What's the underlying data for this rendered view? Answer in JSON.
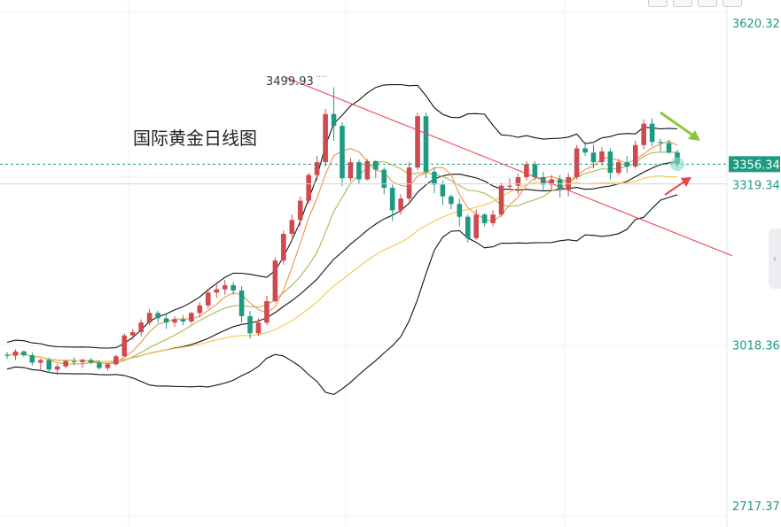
{
  "chart_data": {
    "type": "candlestick",
    "title": "国际黄金日线图",
    "price_axis": {
      "ticks": [
        3620.32,
        3018.36,
        2717.37
      ],
      "min": 2717.37,
      "max": 3620.32,
      "position": "right"
    },
    "labels": {
      "current_price": "3356.34",
      "support_price": "3319.34",
      "swing_high": "3499.93"
    },
    "last_price": 3356.34,
    "last_price_line": 3356.34,
    "support_line": 3319.34,
    "swing_high_value": 3499.93,
    "grid": true,
    "overlays": [
      "bollinger-bands",
      "moving-averages",
      "descending-trendline",
      "forecast-arrows"
    ],
    "colors": {
      "up": "#d0494f",
      "down": "#1e9a82",
      "bollinger": "#111111",
      "ma_fast": "#f0924a",
      "ma_mid": "#a9b654",
      "ma_slow": "#f2c84b",
      "trendline": "#e8454f",
      "arrow_down": "#8cc63f",
      "arrow_up": "#e8454f",
      "price_tag": "#1e9a82",
      "axis_text": "#1e9a82"
    },
    "candles": [
      [
        3000,
        3005,
        2992,
        2998
      ],
      [
        2998,
        3010,
        2990,
        3006
      ],
      [
        3006,
        3008,
        2996,
        2999
      ],
      [
        2999,
        3004,
        2980,
        2985
      ],
      [
        2985,
        2993,
        2970,
        2990
      ],
      [
        2990,
        2995,
        2965,
        2972
      ],
      [
        2972,
        2982,
        2962,
        2978
      ],
      [
        2978,
        2990,
        2975,
        2988
      ],
      [
        2988,
        2995,
        2980,
        2986
      ],
      [
        2986,
        2992,
        2975,
        2990
      ],
      [
        2990,
        2994,
        2982,
        2985
      ],
      [
        2985,
        2990,
        2972,
        2975
      ],
      [
        2975,
        2985,
        2970,
        2982
      ],
      [
        2982,
        3000,
        2980,
        2997
      ],
      [
        2997,
        3040,
        2996,
        3036
      ],
      [
        3036,
        3048,
        3028,
        3042
      ],
      [
        3042,
        3066,
        3034,
        3060
      ],
      [
        3060,
        3085,
        3055,
        3078
      ],
      [
        3078,
        3082,
        3060,
        3068
      ],
      [
        3068,
        3075,
        3048,
        3060
      ],
      [
        3060,
        3072,
        3052,
        3066
      ],
      [
        3066,
        3074,
        3055,
        3062
      ],
      [
        3062,
        3080,
        3058,
        3078
      ],
      [
        3078,
        3098,
        3070,
        3092
      ],
      [
        3092,
        3122,
        3086,
        3116
      ],
      [
        3116,
        3136,
        3106,
        3122
      ],
      [
        3122,
        3140,
        3112,
        3130
      ],
      [
        3130,
        3136,
        3112,
        3120
      ],
      [
        3120,
        3128,
        3060,
        3072
      ],
      [
        3072,
        3082,
        3030,
        3040
      ],
      [
        3040,
        3068,
        3035,
        3060
      ],
      [
        3060,
        3110,
        3055,
        3100
      ],
      [
        3100,
        3182,
        3098,
        3176
      ],
      [
        3176,
        3232,
        3168,
        3226
      ],
      [
        3226,
        3262,
        3220,
        3252
      ],
      [
        3252,
        3296,
        3240,
        3288
      ],
      [
        3288,
        3340,
        3282,
        3336
      ],
      [
        3336,
        3372,
        3326,
        3360
      ],
      [
        3360,
        3460,
        3352,
        3450
      ],
      [
        3450,
        3500,
        3400,
        3428
      ],
      [
        3428,
        3435,
        3315,
        3330
      ],
      [
        3330,
        3368,
        3325,
        3360
      ],
      [
        3360,
        3365,
        3320,
        3328
      ],
      [
        3328,
        3366,
        3326,
        3362
      ],
      [
        3362,
        3364,
        3330,
        3346
      ],
      [
        3346,
        3350,
        3300,
        3312
      ],
      [
        3312,
        3318,
        3250,
        3270
      ],
      [
        3270,
        3300,
        3262,
        3292
      ],
      [
        3292,
        3360,
        3286,
        3350
      ],
      [
        3350,
        3452,
        3346,
        3446
      ],
      [
        3446,
        3452,
        3330,
        3342
      ],
      [
        3342,
        3350,
        3302,
        3318
      ],
      [
        3318,
        3326,
        3280,
        3296
      ],
      [
        3296,
        3300,
        3272,
        3282
      ],
      [
        3282,
        3292,
        3240,
        3258
      ],
      [
        3258,
        3262,
        3210,
        3218
      ],
      [
        3218,
        3272,
        3215,
        3262
      ],
      [
        3262,
        3265,
        3240,
        3246
      ],
      [
        3246,
        3270,
        3240,
        3262
      ],
      [
        3262,
        3322,
        3258,
        3316
      ],
      [
        3316,
        3330,
        3308,
        3316
      ],
      [
        3316,
        3338,
        3300,
        3332
      ],
      [
        3332,
        3362,
        3326,
        3356
      ],
      [
        3356,
        3362,
        3326,
        3332
      ],
      [
        3332,
        3342,
        3306,
        3318
      ],
      [
        3318,
        3336,
        3306,
        3328
      ],
      [
        3328,
        3336,
        3294,
        3308
      ],
      [
        3308,
        3340,
        3296,
        3332
      ],
      [
        3332,
        3392,
        3328,
        3386
      ],
      [
        3386,
        3398,
        3372,
        3378
      ],
      [
        3378,
        3392,
        3348,
        3360
      ],
      [
        3360,
        3388,
        3354,
        3380
      ],
      [
        3380,
        3386,
        3328,
        3340
      ],
      [
        3340,
        3366,
        3336,
        3360
      ],
      [
        3360,
        3372,
        3340,
        3352
      ],
      [
        3352,
        3400,
        3348,
        3392
      ],
      [
        3392,
        3440,
        3384,
        3432
      ],
      [
        3432,
        3442,
        3390,
        3398
      ],
      [
        3398,
        3404,
        3380,
        3396
      ],
      [
        3396,
        3402,
        3376,
        3378
      ],
      [
        3378,
        3383,
        3350,
        3356
      ]
    ]
  }
}
